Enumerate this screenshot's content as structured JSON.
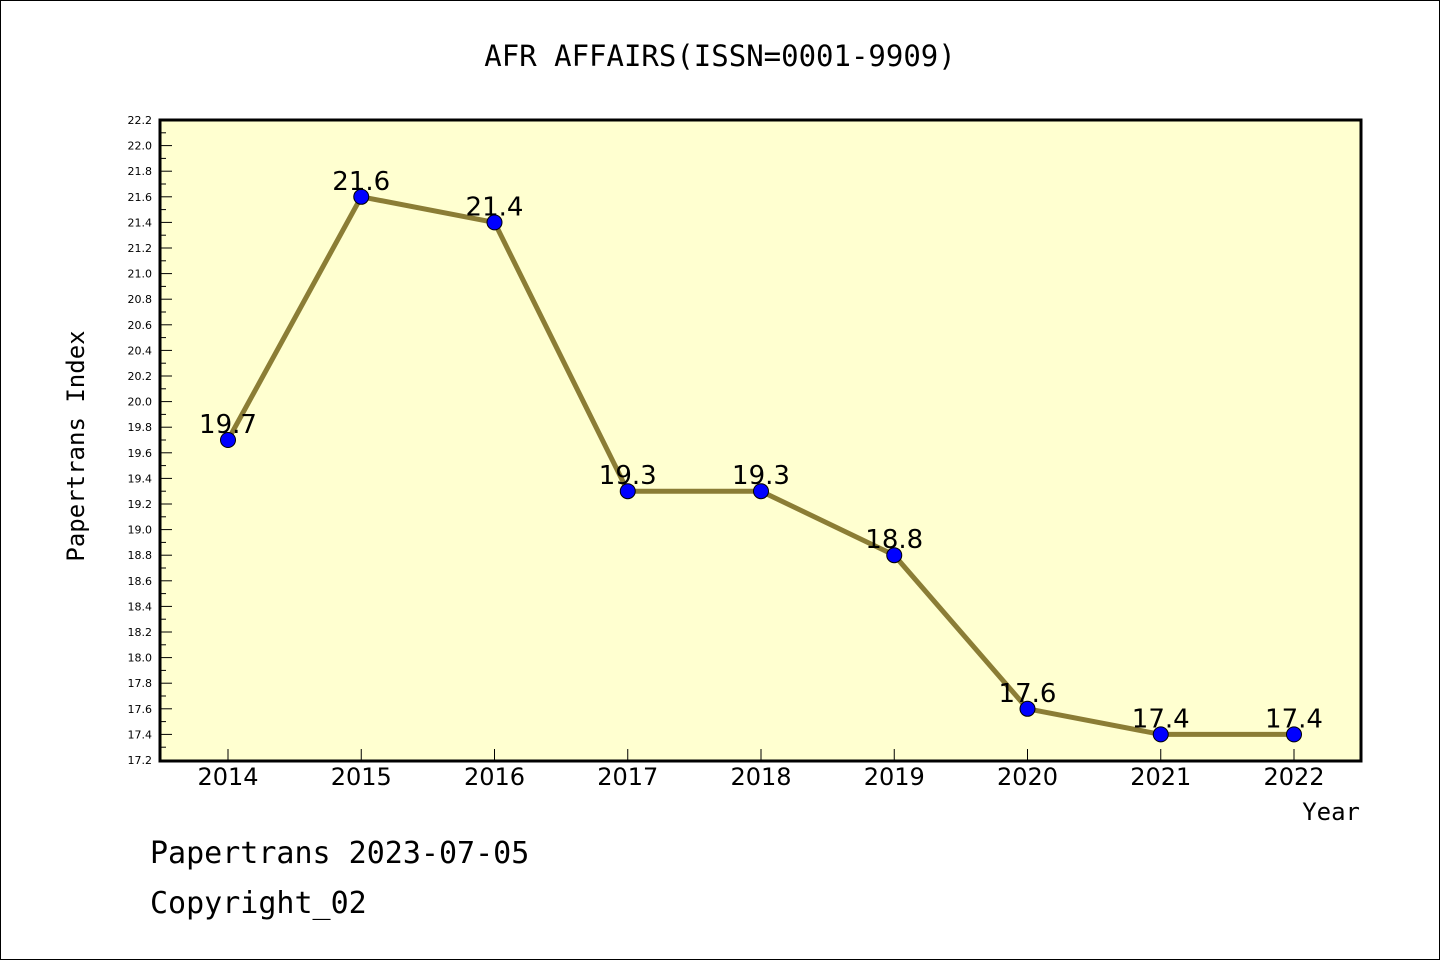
{
  "chart_data": {
    "type": "line",
    "title": "AFR AFFAIRS(ISSN=0001-9909)",
    "xlabel": "Year",
    "ylabel": "Papertrans Index",
    "categories": [
      "2014",
      "2015",
      "2016",
      "2017",
      "2018",
      "2019",
      "2020",
      "2021",
      "2022"
    ],
    "values": [
      19.7,
      21.6,
      21.4,
      19.3,
      19.3,
      18.8,
      17.6,
      17.4,
      17.4
    ],
    "data_labels": [
      "19.7",
      "21.6",
      "21.4",
      "19.3",
      "19.3",
      "18.8",
      "17.6",
      "17.4",
      "17.4"
    ],
    "ylim": [
      17.2,
      22.2
    ],
    "yticks": [
      "17.2",
      "17.4",
      "17.6",
      "17.8",
      "18.0",
      "18.2",
      "18.4",
      "18.6",
      "18.8",
      "19.0",
      "19.2",
      "19.4",
      "19.6",
      "19.8",
      "20.0",
      "20.2",
      "20.4",
      "20.6",
      "20.8",
      "21.0",
      "21.2",
      "21.4",
      "21.6",
      "21.8",
      "22.0",
      "22.2"
    ],
    "grid": false,
    "legend": "none",
    "colors": {
      "plot_background": "#ffffd0",
      "line": "#8b7d35",
      "marker": "#0000ff",
      "marker_edge": "#000000"
    }
  },
  "footer": {
    "line1": "Papertrans 2023-07-05",
    "line2": "Copyright_02"
  }
}
